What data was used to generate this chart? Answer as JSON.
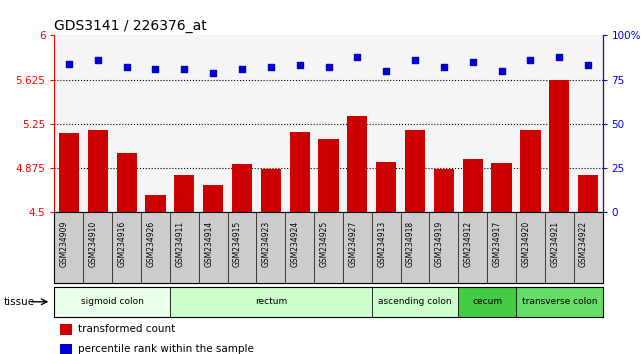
{
  "title": "GDS3141 / 226376_at",
  "samples": [
    "GSM234909",
    "GSM234910",
    "GSM234916",
    "GSM234926",
    "GSM234911",
    "GSM234914",
    "GSM234915",
    "GSM234923",
    "GSM234924",
    "GSM234925",
    "GSM234927",
    "GSM234913",
    "GSM234918",
    "GSM234919",
    "GSM234912",
    "GSM234917",
    "GSM234920",
    "GSM234921",
    "GSM234922"
  ],
  "bar_values": [
    5.17,
    5.2,
    5.0,
    4.65,
    4.82,
    4.73,
    4.91,
    4.87,
    5.18,
    5.12,
    5.32,
    4.93,
    5.2,
    4.87,
    4.95,
    4.92,
    5.2,
    5.62,
    4.82
  ],
  "dot_values": [
    84,
    86,
    82,
    81,
    81,
    79,
    81,
    82,
    83,
    82,
    88,
    80,
    86,
    82,
    85,
    80,
    86,
    88,
    83
  ],
  "ylim_left": [
    4.5,
    6.0
  ],
  "ylim_right": [
    0,
    100
  ],
  "yticks_left": [
    4.5,
    4.875,
    5.25,
    5.625,
    6.0
  ],
  "ytick_labels_left": [
    "4.5",
    "4.875",
    "5.25",
    "5.625",
    "6"
  ],
  "yticks_right": [
    0,
    25,
    50,
    75,
    100
  ],
  "ytick_labels_right": [
    "0",
    "25",
    "50",
    "75",
    "100%"
  ],
  "hlines": [
    4.875,
    5.25,
    5.625
  ],
  "bar_color": "#cc0000",
  "dot_color": "#0000cc",
  "bar_bottom": 4.5,
  "tissues": [
    {
      "label": "sigmoid colon",
      "start": 0,
      "end": 4,
      "color": "#e8ffe8"
    },
    {
      "label": "rectum",
      "start": 4,
      "end": 11,
      "color": "#ccffcc"
    },
    {
      "label": "ascending colon",
      "start": 11,
      "end": 14,
      "color": "#ccffcc"
    },
    {
      "label": "cecum",
      "start": 14,
      "end": 16,
      "color": "#44cc44"
    },
    {
      "label": "transverse colon",
      "start": 16,
      "end": 19,
      "color": "#66dd66"
    }
  ],
  "legend_items": [
    {
      "label": "transformed count",
      "color": "#cc0000"
    },
    {
      "label": "percentile rank within the sample",
      "color": "#0000cc"
    }
  ],
  "tissue_label": "tissue",
  "plot_bg_color": "#f5f5f5",
  "xticklabel_bg": "#cccccc"
}
